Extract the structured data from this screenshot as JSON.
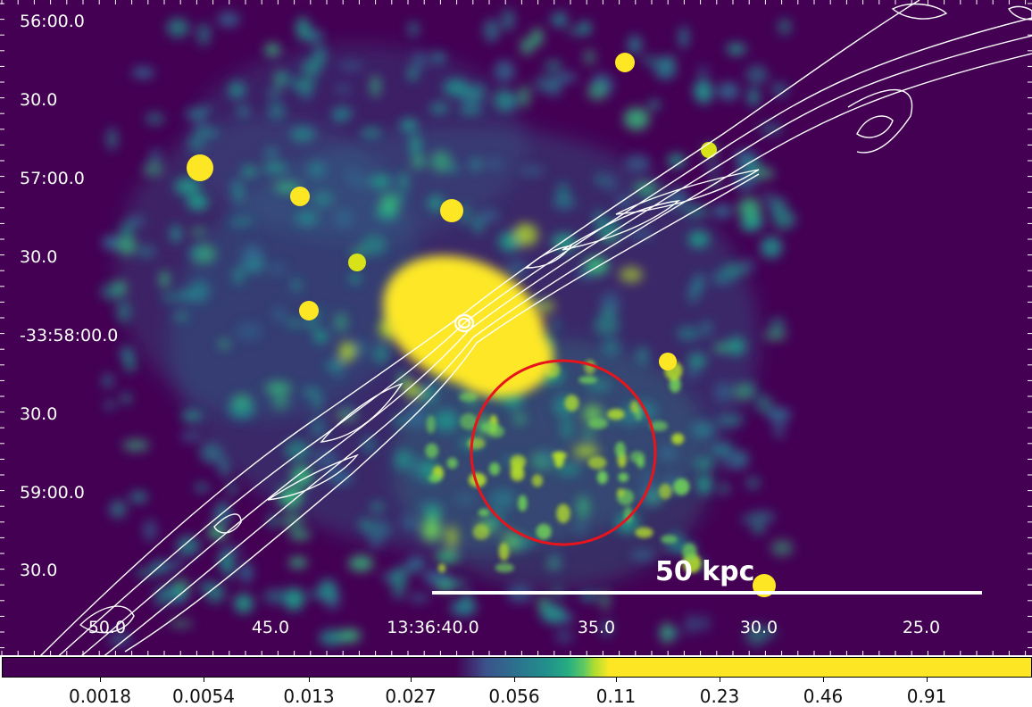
{
  "image": {
    "colormap": "viridis",
    "background_color": "#440154",
    "contour_color": "#ffffff",
    "region_color": "#e8141c",
    "scale_bar_color": "#ffffff"
  },
  "axes": {
    "dec_labels": [
      "56:00.0",
      "30.0",
      "57:00.0",
      "30.0",
      "-33:58:00.0",
      "30.0",
      "59:00.0",
      "30.0"
    ],
    "ra_labels": [
      "50.0",
      "45.0",
      "13:36:40.0",
      "35.0",
      "30.0",
      "25.0"
    ]
  },
  "scale_bar": {
    "label": "50 kpc"
  },
  "colorbar": {
    "labels": [
      "0.0018",
      "0.0054",
      "0.013",
      "0.027",
      "0.056",
      "0.11",
      "0.23",
      "0.46",
      "0.91"
    ]
  }
}
